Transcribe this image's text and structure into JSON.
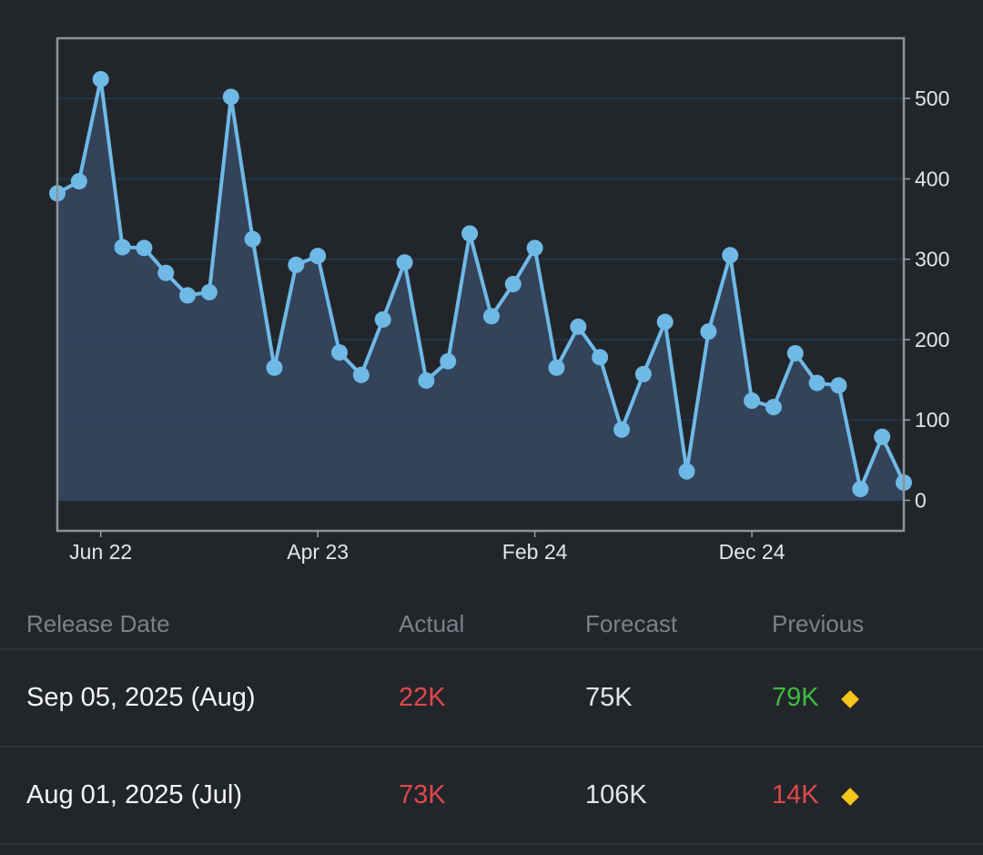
{
  "colors": {
    "background": "#22262b",
    "line": "#6fb9e6",
    "area": "#34475f",
    "grid": "#1f3a55",
    "negative": "#e0484a",
    "positive": "#3ebb3e",
    "neutral": "#e3e5e8",
    "diamond": "#f5c518"
  },
  "chart_data": {
    "type": "line",
    "title": "",
    "xlabel": "",
    "ylabel": "",
    "ylim": [
      -38,
      575
    ],
    "y_ticks": [
      "0",
      "100",
      "200",
      "300",
      "400",
      "500"
    ],
    "x_tick_labels": [
      {
        "label": "Jun 22",
        "index": 2
      },
      {
        "label": "Apr 23",
        "index": 12
      },
      {
        "label": "Feb 24",
        "index": 22
      },
      {
        "label": "Dec 24",
        "index": 32
      }
    ],
    "values": [
      382,
      397,
      524,
      315,
      314,
      283,
      255,
      259,
      502,
      325,
      165,
      293,
      304,
      184,
      156,
      225,
      296,
      149,
      173,
      332,
      229,
      269,
      314,
      165,
      216,
      178,
      88,
      157,
      222,
      36,
      210,
      305,
      124,
      116,
      183,
      146,
      143,
      14,
      79,
      22
    ]
  },
  "table": {
    "headers": {
      "release_date": "Release Date",
      "actual": "Actual",
      "forecast": "Forecast",
      "previous": "Previous"
    },
    "rows": [
      {
        "date": "Sep 05, 2025 (Aug)",
        "actual": "22K",
        "forecast": "75K",
        "previous": "79K",
        "actual_color": "#e0484a",
        "previous_color": "#3ebb3e"
      },
      {
        "date": "Aug 01, 2025 (Jul)",
        "actual": "73K",
        "forecast": "106K",
        "previous": "14K",
        "actual_color": "#e0484a",
        "previous_color": "#e0484a"
      }
    ]
  }
}
